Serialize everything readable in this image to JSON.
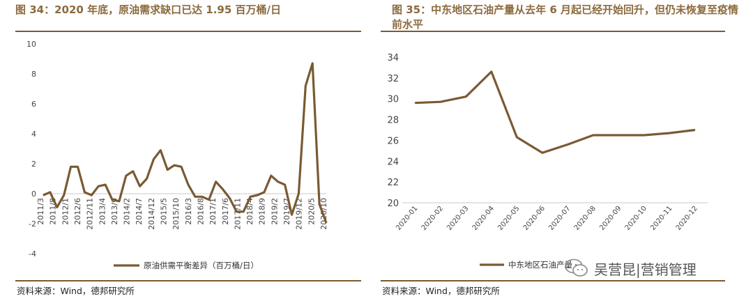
{
  "colors": {
    "line": "#7a5a33",
    "title": "#8b6a3e",
    "rule": "#7a5a33",
    "axis": "#c8c8c8"
  },
  "left": {
    "title": "图 34：2020 年底，原油需求缺口已达 1.95 百万桶/日",
    "source": "资料来源：Wind，德邦研究所",
    "chart_data": {
      "type": "line",
      "ylim": [
        -4,
        10
      ],
      "yticks": [
        -4,
        -2,
        0,
        2,
        4,
        6,
        8,
        10
      ],
      "x_tick_labels": [
        "2011/3",
        "2011/8",
        "2012/1",
        "2012/6",
        "2012/11",
        "2013/4",
        "2013/9",
        "2014/2",
        "2014/7",
        "2014/12",
        "2015/5",
        "2015/10",
        "2016/3",
        "2016/8",
        "2017/1",
        "2017/6",
        "2017/11",
        "2018/4",
        "2018/9",
        "2019/2",
        "2019/7",
        "2019/12",
        "2020/5",
        "2020/10"
      ],
      "legend": "原油供需平衡差异（百万桶/日）",
      "legend_position": "bottom",
      "series": [
        {
          "name": "原油供需平衡差异（百万桶/日）",
          "values": [
            -0.1,
            0.1,
            -0.9,
            -0.1,
            1.8,
            1.8,
            0.1,
            -0.1,
            0.5,
            0.6,
            -0.4,
            -0.5,
            1.2,
            1.5,
            0.5,
            1.0,
            2.3,
            2.9,
            1.6,
            1.9,
            1.8,
            0.6,
            -0.2,
            -0.2,
            -0.4,
            0.8,
            0.3,
            -0.3,
            -1.2,
            -1.2,
            -0.2,
            -0.1,
            0.1,
            1.2,
            0.8,
            0.6,
            -1.4,
            0.0,
            7.2,
            8.7,
            -0.7,
            -1.95
          ]
        }
      ]
    }
  },
  "right": {
    "title": "图 35：中东地区石油产量从去年 6 月起已经开始回升，但仍未恢复至疫情前水平",
    "source": "资料来源：Wind，德邦研究所",
    "chart_data": {
      "type": "line",
      "ylim": [
        20,
        34
      ],
      "yticks": [
        20,
        22,
        24,
        26,
        28,
        30,
        32,
        34
      ],
      "categories": [
        "2020-01",
        "2020-02",
        "2020-03",
        "2020-04",
        "2020-05",
        "2020-06",
        "2020-07",
        "2020-08",
        "2020-09",
        "2020-10",
        "2020-11",
        "2020-12"
      ],
      "legend": "中东地区石油产量",
      "legend_position": "bottom",
      "series": [
        {
          "name": "中东地区石油产量",
          "values": [
            29.6,
            29.7,
            30.2,
            32.6,
            26.3,
            24.8,
            25.6,
            26.5,
            26.5,
            26.5,
            26.7,
            27.0
          ]
        }
      ]
    }
  },
  "watermark": {
    "text": "吴营昆|营销管理",
    "icon": "wechat-icon"
  }
}
